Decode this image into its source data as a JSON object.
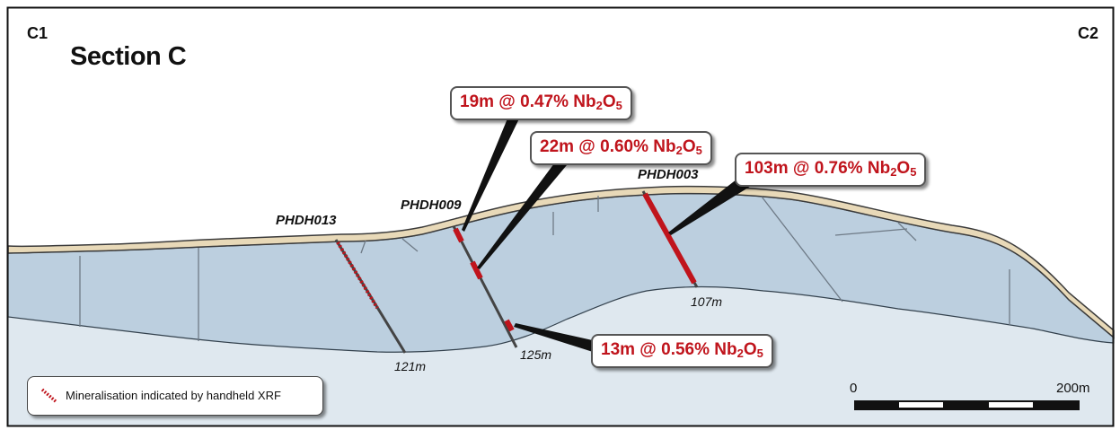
{
  "section": {
    "title": "Section C",
    "left_end": "C1",
    "right_end": "C2"
  },
  "drillholes": [
    {
      "id": "PHDH013",
      "depth": "121m"
    },
    {
      "id": "PHDH009",
      "depth": "125m"
    },
    {
      "id": "PHDH003",
      "depth": "107m"
    }
  ],
  "intercepts": [
    {
      "width": "19m",
      "grade": "0.47%",
      "oxide_main": "Nb",
      "oxide_sub1": "2",
      "oxide_mid": "O",
      "oxide_sub2": "5"
    },
    {
      "width": "22m",
      "grade": "0.60%",
      "oxide_main": "Nb",
      "oxide_sub1": "2",
      "oxide_mid": "O",
      "oxide_sub2": "5"
    },
    {
      "width": "103m",
      "grade": "0.76%",
      "oxide_main": "Nb",
      "oxide_sub1": "2",
      "oxide_mid": "O",
      "oxide_sub2": "5"
    },
    {
      "width": "13m",
      "grade": "0.56%",
      "oxide_main": "Nb",
      "oxide_sub1": "2",
      "oxide_mid": "O",
      "oxide_sub2": "5"
    }
  ],
  "legend": {
    "text": "Mineralisation indicated by handheld XRF",
    "symbol": "red-dashed-line"
  },
  "scale_bar": {
    "start_label": "0",
    "end_label": "200m"
  },
  "colors": {
    "background_rock": "#dfe8ef",
    "mineralised_body": "#bccfdf",
    "cover": "#e8d9b8",
    "intercept_red": "#c0141c",
    "drill_trace": "#444444"
  }
}
